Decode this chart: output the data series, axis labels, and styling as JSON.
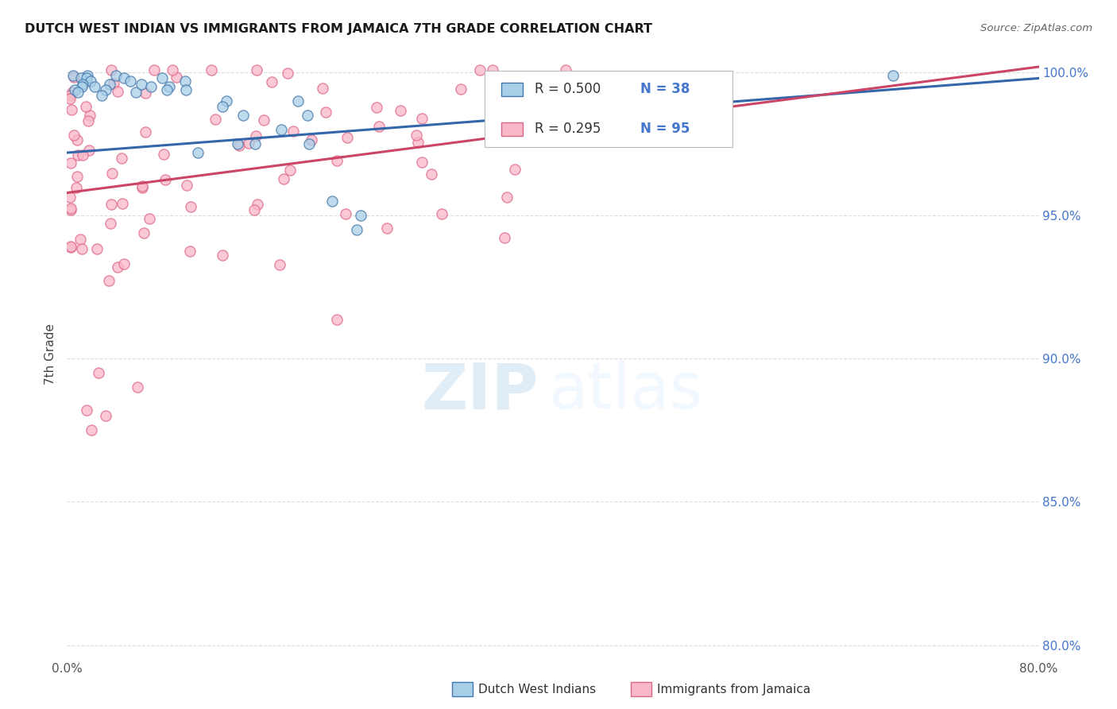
{
  "title": "DUTCH WEST INDIAN VS IMMIGRANTS FROM JAMAICA 7TH GRADE CORRELATION CHART",
  "source": "Source: ZipAtlas.com",
  "ylabel_label": "7th Grade",
  "ytick_positions": [
    1.0,
    0.95,
    0.9,
    0.85,
    0.8
  ],
  "ytick_labels": [
    "100.0%",
    "95.0%",
    "90.0%",
    "85.0%",
    "80.0%"
  ],
  "xlim": [
    0.0,
    0.8
  ],
  "ylim": [
    0.795,
    1.008
  ],
  "footer_blue": "Dutch West Indians",
  "footer_pink": "Immigrants from Jamaica",
  "blue_fill_color": "#a8cfe8",
  "pink_fill_color": "#f9b8c8",
  "blue_edge_color": "#4477aa",
  "pink_edge_color": "#dd6688",
  "blue_line_color": "#3366aa",
  "pink_line_color": "#cc4466",
  "legend_R_blue": "0.500",
  "legend_N_blue": "38",
  "legend_R_pink": "0.295",
  "legend_N_pink": "95",
  "grid_color": "#dddddd",
  "axis_label_color": "#4477cc",
  "right_tick_color": "#4477cc",
  "marker_size": 90
}
